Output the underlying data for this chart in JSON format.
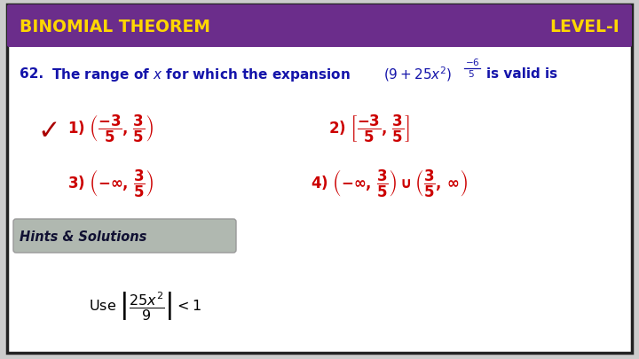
{
  "title_left": "BINOMIAL THEOREM",
  "title_right": "LEVEL-I",
  "header_bg": "#6B2D8B",
  "header_text_color": "#FFD700",
  "outer_border_color": "#222222",
  "question_color": "#1414AA",
  "red_color": "#CC0000",
  "hints_bg": "#B0B8B0",
  "hints_text": "Hints & Solutions",
  "fig_bg": "#CCCCCC",
  "inner_bg": "#FFFFFF"
}
